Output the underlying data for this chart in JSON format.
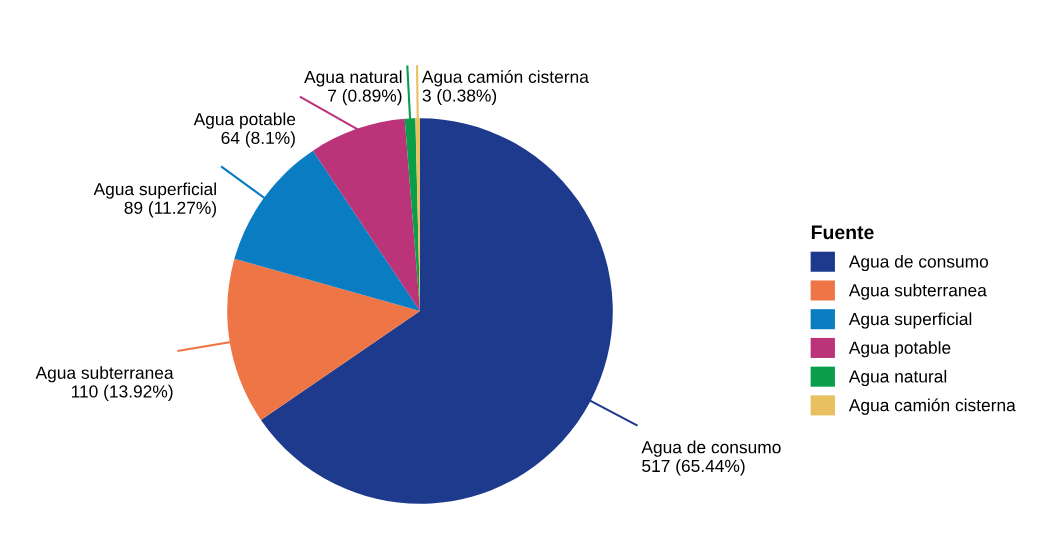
{
  "chart_data": {
    "type": "pie",
    "categories": [
      "Agua de consumo",
      "Agua subterranea",
      "Agua superficial",
      "Agua potable",
      "Agua natural",
      "Agua camión cisterna"
    ],
    "values": [
      517,
      110,
      89,
      64,
      7,
      3
    ],
    "colors": [
      "#1e3a8c",
      "#ee7646",
      "#0a7dc2",
      "#bb3479",
      "#0a9e48",
      "#e8c060"
    ],
    "value_labels": [
      "517 (65.44%)",
      "110 (13.92%)",
      "89 (11.27%)",
      "64 (8.1%)",
      "7 (0.89%)",
      "3 (0.38%)"
    ],
    "legend_title": "Fuente",
    "legend": "right"
  }
}
